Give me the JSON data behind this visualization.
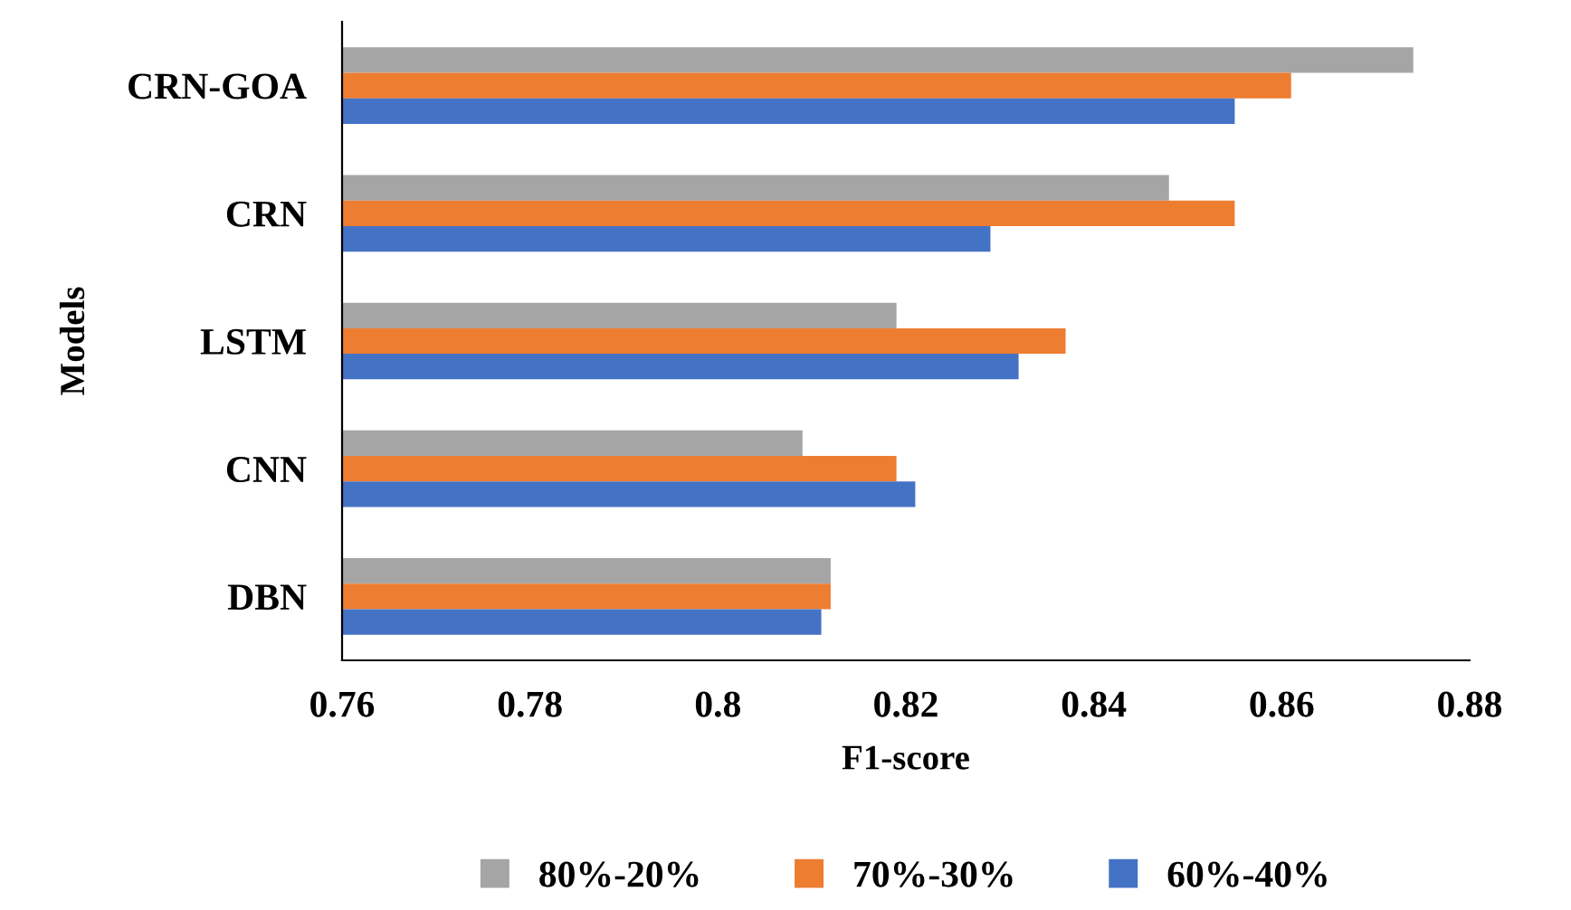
{
  "chart_data": {
    "type": "bar",
    "orientation": "horizontal",
    "xlabel": "F1-score",
    "ylabel": "Models",
    "categories": [
      "CRN-GOA",
      "CRN",
      "LSTM",
      "CNN",
      "DBN"
    ],
    "series": [
      {
        "name": "80%-20%",
        "color": "#a5a5a5",
        "values": [
          0.874,
          0.848,
          0.819,
          0.809,
          0.812
        ]
      },
      {
        "name": "70%-30%",
        "color": "#ed7d31",
        "values": [
          0.861,
          0.855,
          0.837,
          0.819,
          0.812
        ]
      },
      {
        "name": "60%-40%",
        "color": "#4472c4",
        "values": [
          0.855,
          0.829,
          0.832,
          0.821,
          0.811
        ]
      }
    ],
    "xlim": [
      0.76,
      0.88
    ],
    "xticks": [
      0.76,
      0.78,
      0.8,
      0.82,
      0.84,
      0.86,
      0.88
    ],
    "grid": false,
    "legend": "bottom"
  }
}
